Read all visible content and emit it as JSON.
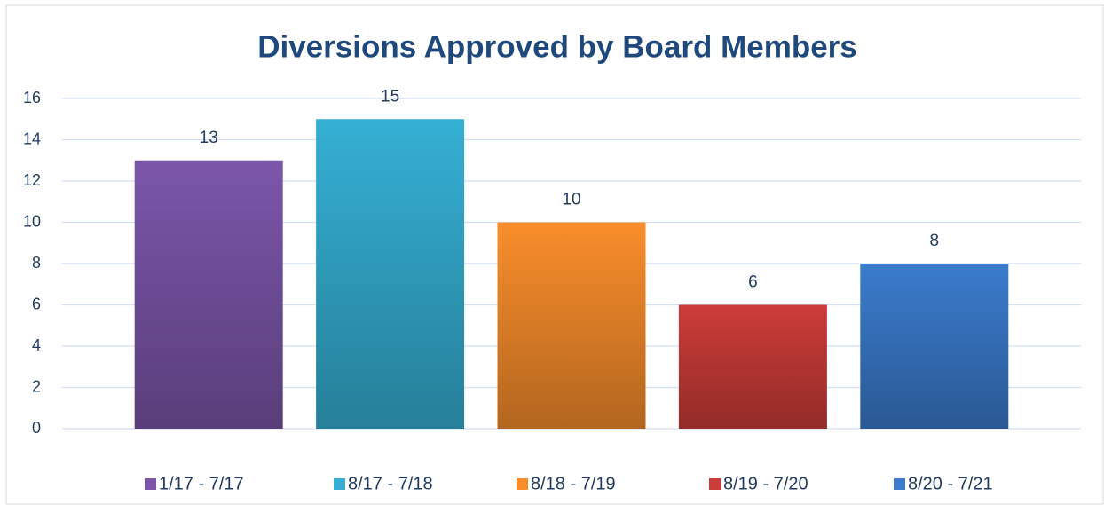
{
  "chart_data": {
    "type": "bar",
    "title": "Diversions Approved by Board Members",
    "series": [
      {
        "name": "1/17 - 7/17",
        "color": "#7b56aa",
        "values": [
          13
        ]
      },
      {
        "name": "8/17 - 7/18",
        "color": "#35b0d4",
        "values": [
          15
        ]
      },
      {
        "name": "8/18 - 7/19",
        "color": "#f98d2b",
        "values": [
          10
        ]
      },
      {
        "name": "8/19 - 7/20",
        "color": "#cc3c38",
        "values": [
          6
        ]
      },
      {
        "name": "8/20 - 7/21",
        "color": "#3b7ccd",
        "values": [
          8
        ]
      }
    ],
    "ylim": [
      0,
      16
    ],
    "yticks": [
      0,
      2,
      4,
      6,
      8,
      10,
      12,
      14,
      16
    ],
    "grid": true,
    "legend": "bottom"
  }
}
